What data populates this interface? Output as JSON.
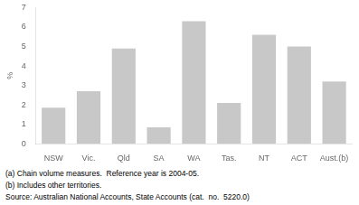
{
  "chart_data": {
    "type": "bar",
    "categories": [
      "NSW",
      "Vic.",
      "Qld",
      "SA",
      "WA",
      "Tas.",
      "NT",
      "ACT",
      "Aust.(b)"
    ],
    "values": [
      1.85,
      2.7,
      4.9,
      0.85,
      6.3,
      2.1,
      5.6,
      5.0,
      3.2
    ],
    "color": "#c8c8c8",
    "ylabel": "%",
    "ylim": [
      0,
      7
    ],
    "yticks": [
      0,
      1,
      2,
      3,
      4,
      5,
      6,
      7
    ],
    "grid": false,
    "annotations": [
      "(a) Chain volume measures.  Reference year is 2004-05.",
      "(b) Includes other territories.",
      "Source: Australian National Accounts, State Accounts (cat.  no.  5220.0)"
    ]
  }
}
